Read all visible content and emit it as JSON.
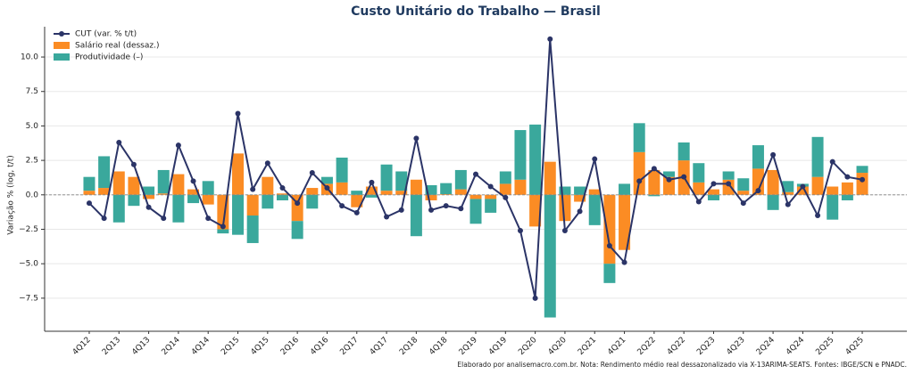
{
  "chart_data": {
    "type": "bar-line",
    "title": "Custo Unitário do Trabalho — Brasil",
    "y_label": "Variação % (log, t/t)",
    "note": "Elaborado por analisemacro.com.br. Nota: Rendimento médio real dessazonalizado via X-13ARIMA-SEATS. Fontes: IBGE/SCN e PNADC.",
    "legend_position": "upper left",
    "grid": true,
    "ylim": [
      -9.9,
      12.2
    ],
    "yticks": [
      {
        "value": -7.5,
        "label": "−7.5"
      },
      {
        "value": -5,
        "label": "−5.0"
      },
      {
        "value": -2.5,
        "label": "−2.5"
      },
      {
        "value": 0,
        "label": "0.0"
      },
      2.5,
      {
        "value": 5,
        "label": "5.0"
      },
      7.5,
      {
        "value": 10,
        "label": "10.0"
      }
    ],
    "categories": [
      "4Q12",
      null,
      "2Q13",
      null,
      "4Q13",
      null,
      "2Q14",
      null,
      "4Q14",
      null,
      "2Q15",
      null,
      "4Q15",
      null,
      "2Q16",
      null,
      "4Q16",
      null,
      "2Q17",
      null,
      "4Q17",
      null,
      "2Q18",
      null,
      "4Q18",
      null,
      "2Q19",
      null,
      "4Q19",
      null,
      "2Q20",
      null,
      "4Q20",
      null,
      "2Q21",
      null,
      "4Q21",
      null,
      "2Q22",
      null,
      "4Q22",
      null,
      "2Q23",
      null,
      "4Q23",
      null,
      "2Q24",
      null,
      "4Q24",
      null,
      "2Q25",
      null,
      "4Q25"
    ],
    "series": [
      {
        "name": "CUT (var. % t/t)",
        "kind": "line",
        "color": "#2b3467",
        "values": [
          -0.6,
          -1.7,
          3.8,
          2.2,
          -0.9,
          -1.7,
          3.6,
          1.0,
          -1.7,
          -2.3,
          5.9,
          0.4,
          2.3,
          0.5,
          -0.6,
          1.6,
          0.5,
          -0.8,
          -1.3,
          0.9,
          -1.6,
          -1.1,
          4.1,
          -1.1,
          -0.8,
          -1.0,
          1.5,
          0.6,
          -0.2,
          -2.6,
          -7.5,
          11.3,
          -2.6,
          -1.2,
          2.6,
          -3.7,
          -4.9,
          1.0,
          1.9,
          1.1,
          1.3,
          -0.5,
          0.8,
          0.8,
          -0.6,
          0.3,
          2.9,
          -0.7,
          0.6,
          -1.5,
          2.4,
          1.3,
          1.1
        ]
      },
      {
        "name": "Salário real (dessaz.)",
        "kind": "bar",
        "color": "#fb8c24",
        "values": [
          0.3,
          0.5,
          1.7,
          1.3,
          -0.3,
          0.1,
          1.5,
          0.4,
          -0.7,
          -2.5,
          3.0,
          -1.5,
          1.3,
          0.1,
          -1.9,
          0.5,
          0.8,
          0.9,
          -0.9,
          0.6,
          0.3,
          0.3,
          1.1,
          -0.4,
          0.05,
          0.4,
          -0.3,
          -0.3,
          0.8,
          1.1,
          -2.3,
          2.4,
          -1.9,
          -0.5,
          0.4,
          -5.0,
          -4.0,
          3.1,
          1.8,
          1.3,
          2.5,
          0.9,
          0.4,
          1.1,
          0.3,
          1.9,
          1.8,
          0.2,
          0.6,
          1.3,
          0.6,
          0.9,
          1.6
        ]
      },
      {
        "name": "Produtividade (–)",
        "kind": "bar",
        "color": "#3aa89c",
        "values": [
          1.0,
          2.3,
          -2.0,
          -0.8,
          0.6,
          1.7,
          -2.0,
          -0.6,
          1.0,
          -0.3,
          -2.9,
          -2.0,
          -1.0,
          -0.4,
          -1.3,
          -1.0,
          0.5,
          1.8,
          0.3,
          -0.2,
          1.9,
          1.4,
          -3.0,
          0.7,
          0.8,
          1.4,
          -1.8,
          -1.0,
          0.9,
          3.6,
          5.1,
          -8.9,
          0.6,
          0.6,
          -2.2,
          -1.4,
          0.8,
          2.1,
          -0.1,
          0.4,
          1.3,
          1.4,
          -0.4,
          0.6,
          0.9,
          1.7,
          -1.1,
          0.8,
          0.2,
          2.9,
          -1.8,
          -0.4,
          0.5
        ]
      }
    ]
  }
}
